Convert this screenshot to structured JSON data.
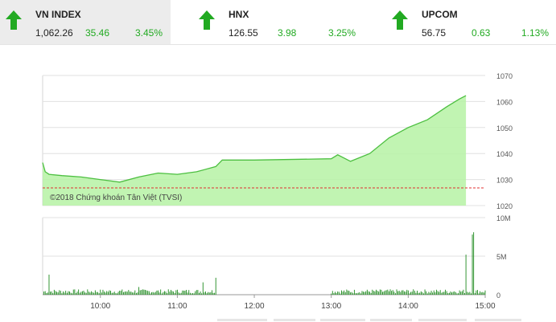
{
  "tabs": [
    {
      "name": "VN INDEX",
      "price": "1,062.26",
      "change": "35.46",
      "pct": "3.45%"
    },
    {
      "name": "HNX",
      "price": "126.55",
      "change": "3.98",
      "pct": "3.25%"
    },
    {
      "name": "UPCOM",
      "price": "56.75",
      "change": "0.63",
      "pct": "1.13%"
    }
  ],
  "colors": {
    "up": "#22aa22",
    "area": "#b6f2a5",
    "line": "#4cbf40",
    "volume": "#1e8a1e",
    "reference": "#e03030"
  },
  "chart_data": [
    {
      "type": "area",
      "x": [
        "09:15",
        "09:17",
        "09:20",
        "09:30",
        "09:45",
        "10:00",
        "10:15",
        "10:30",
        "10:45",
        "11:00",
        "11:15",
        "11:30",
        "11:35",
        "12:00",
        "13:00",
        "13:05",
        "13:15",
        "13:30",
        "13:45",
        "14:00",
        "14:15",
        "14:30",
        "14:40",
        "14:45"
      ],
      "values": [
        1036.5,
        1033,
        1032,
        1031.5,
        1031,
        1030,
        1029,
        1031,
        1032.5,
        1032,
        1033,
        1035,
        1037.5,
        1037.5,
        1038,
        1039.5,
        1037,
        1040,
        1046,
        1050,
        1053,
        1058,
        1061,
        1062.26
      ],
      "ylim": [
        1020,
        1070
      ],
      "yticks": [
        "1070",
        "1060",
        "1050",
        "1040",
        "1030",
        "1020"
      ],
      "reference": 1026.8,
      "watermark": "©2018 Chứng khoán Tân Việt (TVSI)"
    },
    {
      "type": "bar",
      "ylim": [
        0,
        10
      ],
      "yticks": [
        "10M",
        "5M",
        "0"
      ],
      "xticks": [
        "10:00",
        "11:00",
        "12:00",
        "13:00",
        "14:00",
        "15:00"
      ],
      "spikes": [
        [
          "09:20",
          2.6
        ],
        [
          "10:30",
          1.0
        ],
        [
          "11:20",
          1.6
        ],
        [
          "11:30",
          2.2
        ],
        [
          "14:45",
          5.2
        ],
        [
          "14:50",
          7.8
        ],
        [
          "14:51",
          8.1
        ]
      ]
    }
  ]
}
